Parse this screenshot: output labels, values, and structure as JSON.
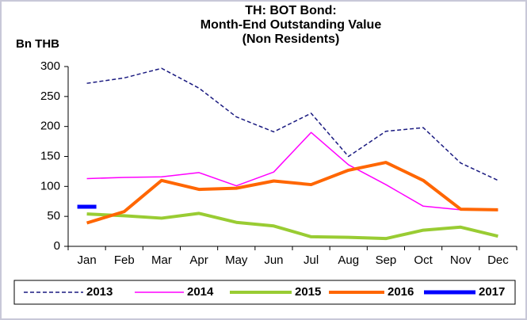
{
  "chart_data": {
    "type": "line",
    "title": [
      "TH: BOT Bond:",
      "Month-End Outstanding Value",
      "(Non Residents)"
    ],
    "y_axis_label": "Bn THB",
    "categories": [
      "Jan",
      "Feb",
      "Mar",
      "Apr",
      "May",
      "Jun",
      "Jul",
      "Aug",
      "Sep",
      "Oct",
      "Nov",
      "Dec"
    ],
    "series": [
      {
        "name": "2013",
        "color": "#1a1a80",
        "line_style": "dashed",
        "line_width": 1.5,
        "values": [
          272,
          281,
          297,
          264,
          216,
          191,
          222,
          150,
          192,
          198,
          139,
          110
        ]
      },
      {
        "name": "2014",
        "color": "#ff00ff",
        "line_style": "solid",
        "line_width": 1.5,
        "values": [
          113,
          115,
          116,
          123,
          101,
          124,
          190,
          136,
          103,
          67,
          61,
          60
        ]
      },
      {
        "name": "2015",
        "color": "#99cc33",
        "line_style": "solid",
        "line_width": 4,
        "values": [
          54,
          51,
          47,
          55,
          40,
          34,
          16,
          15,
          13,
          27,
          32,
          17
        ]
      },
      {
        "name": "2016",
        "color": "#ff6600",
        "line_style": "solid",
        "line_width": 4,
        "values": [
          39,
          58,
          110,
          95,
          97,
          109,
          103,
          127,
          140,
          110,
          62,
          61
        ]
      },
      {
        "name": "2017",
        "color": "#0000ff",
        "line_style": "solid",
        "line_width": 5,
        "values": [
          66,
          null,
          null,
          null,
          null,
          null,
          null,
          null,
          null,
          null,
          null,
          null
        ]
      }
    ],
    "ylim": [
      0,
      300
    ],
    "yticks": [
      0,
      50,
      100,
      150,
      200,
      250,
      300
    ],
    "grid": false,
    "legend": "bottom"
  }
}
